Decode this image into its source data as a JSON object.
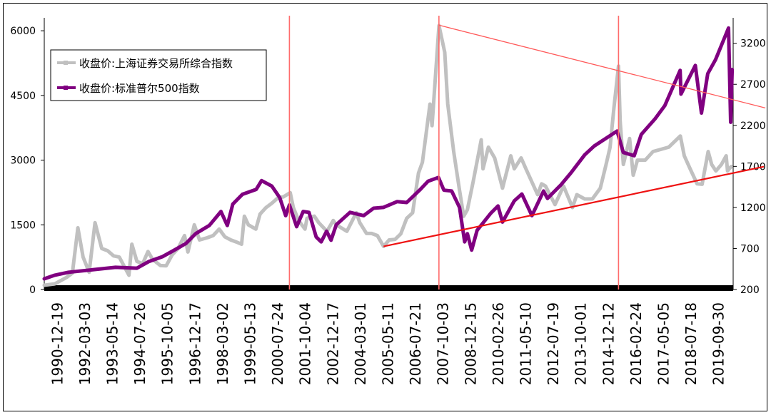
{
  "chart_data": {
    "type": "line",
    "legend_position": "top-left",
    "grid": false,
    "y_left": {
      "ticks": [
        0,
        1500,
        3000,
        4500,
        6000
      ],
      "range": [
        0,
        6300
      ]
    },
    "y_right": {
      "ticks": [
        200,
        700,
        1200,
        1700,
        2200,
        2700,
        3200
      ],
      "range": [
        200,
        3510
      ]
    },
    "x_ticks": [
      "1990-12-19",
      "1992-03-03",
      "1993-05-14",
      "1994-07-26",
      "1995-10-05",
      "1996-12-17",
      "1998-03-02",
      "1999-05-13",
      "2000-07-24",
      "2001-10-04",
      "2002-12-17",
      "2004-03-01",
      "2005-05-11",
      "2006-07-21",
      "2007-10-03",
      "2008-12-15",
      "2010-02-26",
      "2011-05-10",
      "2012-07-19",
      "2013-10-01",
      "2014-12-12",
      "2016-02-24",
      "2017-05-05",
      "2018-07-18",
      "2019-09-30"
    ],
    "series": [
      {
        "name": "收盘价:上海证券交易所综合指数",
        "axis": "left",
        "color": "#c0c0c0",
        "x": [
          "1990-12-19",
          "1991-06-01",
          "1991-12-01",
          "1992-03-01",
          "1992-05-25",
          "1992-08-15",
          "1992-11-17",
          "1993-02-16",
          "1993-06-01",
          "1993-09-01",
          "1993-12-01",
          "1994-03-01",
          "1994-07-29",
          "1994-09-13",
          "1994-12-01",
          "1995-03-01",
          "1995-05-22",
          "1995-08-01",
          "1995-12-01",
          "1996-03-01",
          "1996-06-01",
          "1996-09-01",
          "1996-12-11",
          "1997-02-01",
          "1997-05-12",
          "1997-08-01",
          "1997-12-01",
          "1998-03-01",
          "1998-06-03",
          "1998-09-01",
          "1998-12-01",
          "1999-03-01",
          "1999-05-18",
          "1999-06-30",
          "1999-09-01",
          "1999-12-27",
          "2000-03-01",
          "2000-06-01",
          "2000-09-01",
          "2000-12-01",
          "2001-03-01",
          "2001-06-13",
          "2001-08-01",
          "2001-10-22",
          "2002-01-29",
          "2002-03-01",
          "2002-06-24",
          "2002-09-01",
          "2003-01-06",
          "2003-04-14",
          "2003-06-01",
          "2003-11-13",
          "2004-04-07",
          "2004-06-01",
          "2004-09-13",
          "2004-12-01",
          "2005-03-01",
          "2005-06-06",
          "2005-09-01",
          "2005-12-01",
          "2006-03-01",
          "2006-06-01",
          "2006-09-01",
          "2006-12-01",
          "2007-02-01",
          "2007-05-29",
          "2007-07-01",
          "2007-10-16",
          "2008-01-14",
          "2008-03-01",
          "2008-06-01",
          "2008-09-01",
          "2008-11-04",
          "2009-01-01",
          "2009-04-01",
          "2009-08-04",
          "2009-09-01",
          "2009-11-24",
          "2010-03-01",
          "2010-07-02",
          "2010-11-08",
          "2011-01-01",
          "2011-04-18",
          "2011-07-01",
          "2011-12-31",
          "2012-03-01",
          "2012-05-01",
          "2012-09-26",
          "2013-02-06",
          "2013-06-25",
          "2013-09-01",
          "2014-01-01",
          "2014-05-01",
          "2014-09-01",
          "2014-12-01",
          "2015-02-01",
          "2015-04-01",
          "2015-06-12",
          "2015-07-08",
          "2015-08-26",
          "2015-12-01",
          "2016-01-27",
          "2016-04-01",
          "2016-08-01",
          "2016-12-01",
          "2017-04-01",
          "2017-08-01",
          "2018-01-29",
          "2018-04-01",
          "2018-07-01",
          "2018-10-18",
          "2019-01-04",
          "2019-04-08",
          "2019-06-01",
          "2019-08-06",
          "2019-11-01",
          "2020-01-13",
          "2020-02-03",
          "2020-03-01",
          "2020-04-01"
        ],
        "values": [
          100,
          130,
          280,
          380,
          1430,
          750,
          400,
          1550,
          950,
          900,
          780,
          750,
          330,
          1050,
          650,
          600,
          880,
          700,
          555,
          550,
          800,
          950,
          1250,
          870,
          1500,
          1150,
          1200,
          1250,
          1400,
          1220,
          1150,
          1100,
          1050,
          1700,
          1500,
          1400,
          1750,
          1900,
          2000,
          2120,
          2150,
          2245,
          1900,
          1600,
          1400,
          1650,
          1700,
          1550,
          1350,
          1600,
          1500,
          1350,
          1780,
          1550,
          1300,
          1300,
          1250,
          1000,
          1150,
          1160,
          1290,
          1650,
          1780,
          2700,
          2950,
          4300,
          3800,
          6120,
          5500,
          4300,
          3200,
          2300,
          1700,
          1850,
          2500,
          3470,
          2800,
          3300,
          3050,
          2350,
          3100,
          2800,
          3050,
          2800,
          2200,
          2450,
          2400,
          1970,
          2400,
          1900,
          2200,
          2100,
          2100,
          2350,
          2900,
          3300,
          4200,
          5180,
          3900,
          2900,
          3500,
          2650,
          3000,
          3000,
          3200,
          3250,
          3300,
          3560,
          3100,
          2800,
          2450,
          2440,
          3200,
          2900,
          2750,
          2900,
          3100,
          2750,
          2800,
          2850
        ]
      },
      {
        "name": "收盘价:标准普尔500指数",
        "axis": "right",
        "color": "#800080",
        "x": [
          "1990-12-19",
          "1991-06-01",
          "1992-01-01",
          "1993-01-01",
          "1994-01-01",
          "1994-12-01",
          "1995-06-01",
          "1996-01-01",
          "1996-06-01",
          "1997-01-01",
          "1997-06-01",
          "1998-01-01",
          "1998-07-01",
          "1998-10-08",
          "1999-01-01",
          "1999-06-01",
          "2000-01-01",
          "2000-03-24",
          "2000-09-01",
          "2001-01-01",
          "2001-04-04",
          "2001-06-01",
          "2001-09-21",
          "2002-01-01",
          "2002-04-01",
          "2002-07-23",
          "2002-10-09",
          "2003-01-01",
          "2003-03-11",
          "2003-06-01",
          "2004-01-01",
          "2004-08-01",
          "2005-01-01",
          "2005-06-01",
          "2006-01-01",
          "2006-06-01",
          "2007-01-01",
          "2007-05-01",
          "2007-10-09",
          "2008-01-01",
          "2008-05-01",
          "2008-09-01",
          "2008-11-20",
          "2009-01-01",
          "2009-03-09",
          "2009-06-01",
          "2010-01-01",
          "2010-04-23",
          "2010-07-02",
          "2011-01-01",
          "2011-04-29",
          "2011-10-03",
          "2012-04-01",
          "2012-06-01",
          "2013-01-01",
          "2013-06-01",
          "2014-01-01",
          "2014-06-01",
          "2015-05-21",
          "2015-08-25",
          "2016-02-11",
          "2016-06-01",
          "2017-01-01",
          "2017-06-01",
          "2018-01-26",
          "2018-02-08",
          "2018-09-20",
          "2018-12-24",
          "2019-04-01",
          "2019-08-01",
          "2020-02-19",
          "2020-03-23",
          "2020-04-15"
        ],
        "values": [
          330,
          375,
          410,
          440,
          470,
          460,
          540,
          600,
          665,
          760,
          880,
          980,
          1150,
          980,
          1240,
          1360,
          1420,
          1527,
          1460,
          1320,
          1100,
          1230,
          965,
          1150,
          1140,
          840,
          780,
          910,
          800,
          990,
          1140,
          1100,
          1190,
          1200,
          1270,
          1260,
          1420,
          1520,
          1565,
          1410,
          1400,
          1200,
          780,
          880,
          680,
          920,
          1130,
          1217,
          1022,
          1280,
          1363,
          1100,
          1400,
          1310,
          1480,
          1620,
          1840,
          1950,
          2130,
          1870,
          1830,
          2090,
          2280,
          2440,
          2870,
          2580,
          2930,
          2350,
          2830,
          3000,
          3386,
          2237,
          2880
        ]
      }
    ],
    "annotations": {
      "vertical_lines": [
        "2001-06-01",
        "2007-10-16",
        "2015-06-12"
      ],
      "trend_lines": [
        {
          "axis": "left",
          "from": {
            "x": "2007-10-16",
            "y": 6130
          },
          "to": {
            "x": "2020-04-30",
            "y": 4400
          }
        },
        {
          "axis": "left",
          "from": {
            "x": "2005-06-06",
            "y": 1000
          },
          "to": {
            "x": "2020-04-30",
            "y": 2700
          }
        }
      ]
    }
  }
}
